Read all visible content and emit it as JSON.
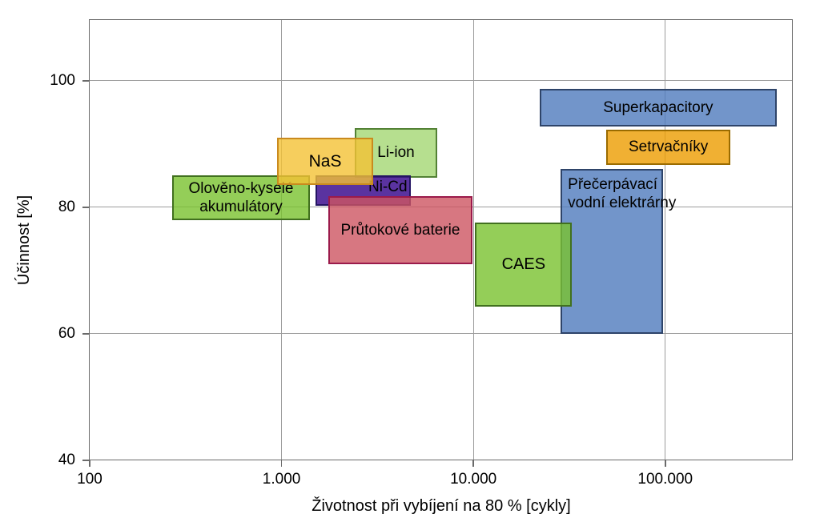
{
  "chart_data": {
    "type": "range-boxes",
    "title": "",
    "xlabel": "Životnost při vybíjení na 80 % [cykly]",
    "ylabel": "Účinnost [%]",
    "x_scale": "log",
    "xlim": [
      100,
      462000
    ],
    "ylim": [
      40,
      109.6
    ],
    "grid": true,
    "legend": "none (labels inside boxes)",
    "x_ticks": [
      {
        "value": 100,
        "label": "100"
      },
      {
        "value": 1000,
        "label": "1.000"
      },
      {
        "value": 10000,
        "label": "10.000"
      },
      {
        "value": 100000,
        "label": "100.000"
      }
    ],
    "y_ticks": [
      {
        "value": 40,
        "label": "40"
      },
      {
        "value": 60,
        "label": "60"
      },
      {
        "value": 80,
        "label": "80"
      },
      {
        "value": 100,
        "label": "100"
      }
    ],
    "series": [
      {
        "id": "pumped-hydro",
        "name": "Přečerpávací vodní elektrárny",
        "label_lines": [
          "Přečerpávací",
          "vodní elektrárny"
        ],
        "x_cycles": [
          28500,
          97000
        ],
        "y_percent": [
          60,
          86
        ],
        "fill": "#4F7BBD",
        "fill_alpha": 0.8,
        "border": "#2E4469",
        "label_align": "left-top",
        "font_px": 19
      },
      {
        "id": "lead-acid",
        "name": "Olověno-kyselé akumulátory",
        "label_lines": [
          "Olověno-kyselé",
          "akumulátory"
        ],
        "x_cycles": [
          270,
          1400
        ],
        "y_percent": [
          78,
          85
        ],
        "fill": "#79C22E",
        "fill_alpha": 0.8,
        "border": "#41701F",
        "label_align": "center",
        "font_px": 19
      },
      {
        "id": "li-ion",
        "name": "Li-ion",
        "label_lines": [
          "Li-ion"
        ],
        "x_cycles": [
          2400,
          6500
        ],
        "y_percent": [
          84.7,
          92.5
        ],
        "fill": "#A4D773",
        "fill_alpha": 0.8,
        "border": "#538135",
        "label_align": "center",
        "font_px": 19
      },
      {
        "id": "ni-cd",
        "name": "Ni-Cd",
        "label_lines": [
          "Ni-Cd"
        ],
        "x_cycles": [
          1500,
          4700
        ],
        "y_percent": [
          80.3,
          85
        ],
        "fill": "#310088",
        "fill_alpha": 0.8,
        "border": "#241463",
        "label_align": "right-top",
        "font_px": 19
      },
      {
        "id": "flow-batteries",
        "name": "Průtokové baterie",
        "label_lines": [
          "Průtokové baterie"
        ],
        "x_cycles": [
          1750,
          9900
        ],
        "y_percent": [
          71,
          81.8
        ],
        "fill": "#CD5562",
        "fill_alpha": 0.8,
        "border": "#9B1B4B",
        "label_align": "center",
        "font_px": 19
      },
      {
        "id": "nas",
        "name": "NaS",
        "label_lines": [
          "NaS"
        ],
        "x_cycles": [
          950,
          3000
        ],
        "y_percent": [
          83.5,
          91
        ],
        "fill": "#F4C235",
        "fill_alpha": 0.8,
        "border": "#C98A1E",
        "label_align": "center",
        "font_px": 21
      },
      {
        "id": "caes",
        "name": "CAES",
        "label_lines": [
          "CAES"
        ],
        "x_cycles": [
          10200,
          32700
        ],
        "y_percent": [
          64.3,
          77.6
        ],
        "fill": "#79C22E",
        "fill_alpha": 0.8,
        "border": "#41701F",
        "label_align": "center",
        "font_px": 20
      },
      {
        "id": "supercapacitors",
        "name": "Superkapacitory",
        "label_lines": [
          "Superkapacitory"
        ],
        "x_cycles": [
          22200,
          380000
        ],
        "y_percent": [
          92.8,
          98.7
        ],
        "fill": "#4F7BBD",
        "fill_alpha": 0.8,
        "border": "#2E4469",
        "label_align": "center",
        "font_px": 19
      },
      {
        "id": "flywheels",
        "name": "Setrvačníky",
        "label_lines": [
          "Setrvačníky"
        ],
        "x_cycles": [
          49400,
          218000
        ],
        "y_percent": [
          86.7,
          92.3
        ],
        "fill": "#EC9C00",
        "fill_alpha": 0.8,
        "border": "#9A6B00",
        "label_align": "center",
        "font_px": 19
      }
    ],
    "style": {
      "grid_color": "#9c9c9c",
      "axis_color": "#6a6a6a",
      "text_color": "#000000",
      "background": "#ffffff"
    }
  }
}
